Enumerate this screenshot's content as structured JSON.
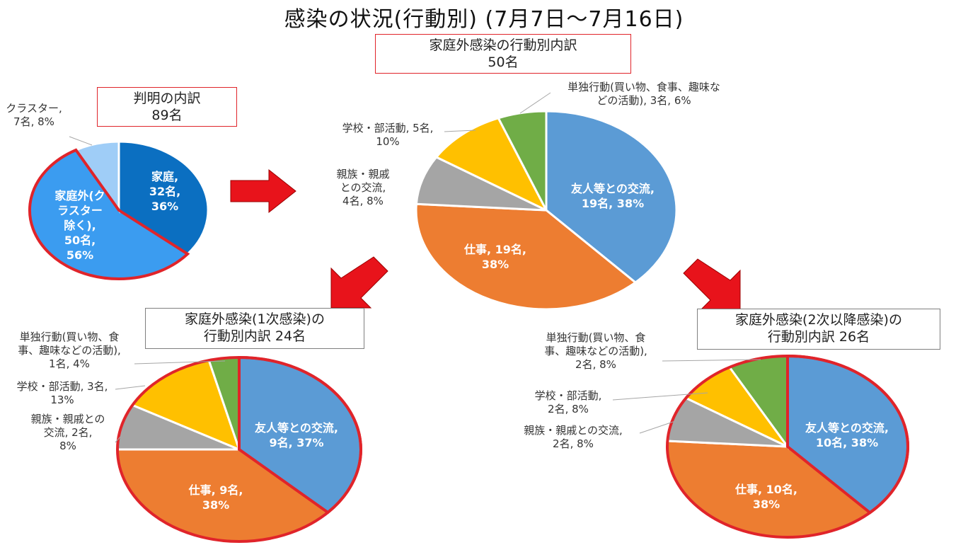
{
  "title": "感染の状況(行動別) (7月7日～7月16日)",
  "colors": {
    "home": "#0b6fc1",
    "outside": "#3b9cf0",
    "cluster": "#9fcdf7",
    "friends": "#5b9bd5",
    "work": "#ed7d31",
    "family": "#a5a5a5",
    "school": "#ffc000",
    "solo": "#70ad47",
    "highlight": "#e0242a",
    "arrow": "#e8131b"
  },
  "boxes": {
    "breakdown": {
      "line1": "判明の内訳",
      "line2": "89名"
    },
    "outside_total": {
      "line1": "家庭外感染の行動別内訳",
      "line2": "50名"
    },
    "primary": {
      "line1": "家庭外感染(1次感染)の",
      "line2": "行動別内訳  24名"
    },
    "secondary": {
      "line1": "家庭外感染(2次以降感染)の",
      "line2": "行動別内訳  26名"
    }
  },
  "chart_data": [
    {
      "type": "pie",
      "title": "判明の内訳 89名",
      "slices": [
        {
          "name": "家庭",
          "count": "32名",
          "value": 36,
          "color": "#0b6fc1",
          "labels": [
            "家庭,",
            "32名,",
            "36%"
          ]
        },
        {
          "name": "家庭外(クラスター除く)",
          "count": "50名",
          "value": 56,
          "color": "#3b9cf0",
          "labels": [
            "家庭外(ク",
            "ラスター",
            "除く),",
            "50名,",
            "56%"
          ]
        },
        {
          "name": "クラスター",
          "count": "7名",
          "value": 8,
          "color": "#9fcdf7",
          "labels": [
            "クラスター,",
            "7名, 8%"
          ]
        }
      ]
    },
    {
      "type": "pie",
      "title": "家庭外感染の行動別内訳 50名",
      "slices": [
        {
          "name": "友人等との交流",
          "count": "19名",
          "value": 38,
          "color": "#5b9bd5",
          "labels": [
            "友人等との交流,",
            "19名, 38%"
          ]
        },
        {
          "name": "仕事",
          "count": "19名",
          "value": 38,
          "color": "#ed7d31",
          "labels": [
            "仕事, 19名,",
            "38%"
          ]
        },
        {
          "name": "親族・親戚との交流",
          "count": "4名",
          "value": 8,
          "color": "#a5a5a5",
          "labels": [
            "親族・親戚",
            "との交流,",
            "4名, 8%"
          ]
        },
        {
          "name": "学校・部活動",
          "count": "5名",
          "value": 10,
          "color": "#ffc000",
          "labels": [
            "学校・部活動, 5名,",
            "10%"
          ]
        },
        {
          "name": "単独行動(買い物、食事、趣味などの活動)",
          "count": "3名",
          "value": 6,
          "color": "#70ad47",
          "labels": [
            "単独行動(買い物、食事、趣味な",
            "どの活動), 3名, 6%"
          ]
        }
      ]
    },
    {
      "type": "pie",
      "title": "家庭外感染(1次感染)の行動別内訳 24名",
      "slices": [
        {
          "name": "友人等との交流",
          "count": "9名",
          "value": 37,
          "color": "#5b9bd5",
          "labels": [
            "友人等との交流,",
            "9名, 37%"
          ]
        },
        {
          "name": "仕事",
          "count": "9名",
          "value": 38,
          "color": "#ed7d31",
          "labels": [
            "仕事, 9名,",
            "38%"
          ]
        },
        {
          "name": "親族・親戚との交流",
          "count": "2名",
          "value": 8,
          "color": "#a5a5a5",
          "labels": [
            "親族・親戚との",
            "交流, 2名,",
            "8%"
          ]
        },
        {
          "name": "学校・部活動",
          "count": "3名",
          "value": 13,
          "color": "#ffc000",
          "labels": [
            "学校・部活動, 3名,",
            "13%"
          ]
        },
        {
          "name": "単独行動(買い物、食事、趣味などの活動)",
          "count": "1名",
          "value": 4,
          "color": "#70ad47",
          "labels": [
            "単独行動(買い物、食",
            "事、趣味などの活動),",
            "1名, 4%"
          ]
        }
      ]
    },
    {
      "type": "pie",
      "title": "家庭外感染(2次以降感染)の行動別内訳 26名",
      "slices": [
        {
          "name": "友人等との交流",
          "count": "10名",
          "value": 38,
          "color": "#5b9bd5",
          "labels": [
            "友人等との交流,",
            "10名, 38%"
          ]
        },
        {
          "name": "仕事",
          "count": "10名",
          "value": 38,
          "color": "#ed7d31",
          "labels": [
            "仕事, 10名,",
            "38%"
          ]
        },
        {
          "name": "親族・親戚との交流",
          "count": "2名",
          "value": 8,
          "color": "#a5a5a5",
          "labels": [
            "親族・親戚との交流,",
            "2名, 8%"
          ]
        },
        {
          "name": "学校・部活動",
          "count": "2名",
          "value": 8,
          "color": "#ffc000",
          "labels": [
            "学校・部活動,",
            "2名, 8%"
          ]
        },
        {
          "name": "単独行動(買い物、食事、趣味などの活動)",
          "count": "2名",
          "value": 8,
          "color": "#70ad47",
          "labels": [
            "単独行動(買い物、食",
            "事、趣味などの活動),",
            "2名, 8%"
          ]
        }
      ]
    }
  ]
}
